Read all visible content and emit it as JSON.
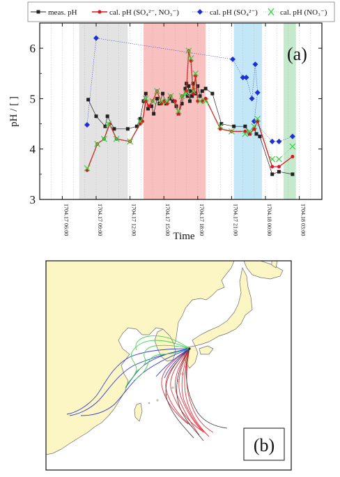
{
  "chart_data": [
    {
      "type": "line",
      "panel_label": "(a)",
      "xlabel": "Time",
      "ylabel": "pH / [ ]",
      "xlim": [
        "1704.17 04:00",
        "1704.18 05:00"
      ],
      "ylim": [
        3,
        6.5
      ],
      "y_ticks": [
        "3",
        "4",
        "5",
        "6"
      ],
      "x_ticks": [
        {
          "t": "1704.17 06:00",
          "h": 6
        },
        {
          "t": "1704.17 09:00",
          "h": 9
        },
        {
          "t": "1704.17 12:00",
          "h": 12
        },
        {
          "t": "1704.17 15:00",
          "h": 15
        },
        {
          "t": "1704.17 18:00",
          "h": 18
        },
        {
          "t": "1704.17 21:00",
          "h": 21
        },
        {
          "t": "1704.18 00:00",
          "h": 24
        },
        {
          "t": "1704.18 03:00",
          "h": 27
        }
      ],
      "shaded_periods": [
        {
          "start": 7.5,
          "end": 11.8,
          "color": "#e3e3e3"
        },
        {
          "start": 13.2,
          "end": 18.7,
          "color": "#f8c0bf"
        },
        {
          "start": 21.2,
          "end": 23.7,
          "color": "#c3e7f7"
        },
        {
          "start": 25.6,
          "end": 26.7,
          "color": "#c5e9cc"
        }
      ],
      "legend": [
        {
          "label": "meas. pH",
          "marker": "square",
          "color": "#222222"
        },
        {
          "label": "cal. pH (SO₄²⁻, NO₃⁻)",
          "marker": "circle",
          "color": "#e0141e"
        },
        {
          "label": "cal. pH (SO₄²⁻)",
          "marker": "diamond",
          "color": "#1e2fd6"
        },
        {
          "label": "cal. pH (NO₃⁻)",
          "marker": "cross",
          "color": "#3fd04a"
        }
      ],
      "series": [
        {
          "name": "meas. pH",
          "marker": "square",
          "color": "#222222",
          "points": [
            [
              8.3,
              4.98
            ],
            [
              9.0,
              4.65
            ],
            [
              9.8,
              4.45
            ],
            [
              10.0,
              4.65
            ],
            [
              10.6,
              4.4
            ],
            [
              11.8,
              4.4
            ],
            [
              12.6,
              4.45
            ],
            [
              12.9,
              4.6
            ],
            [
              13.2,
              4.95
            ],
            [
              13.4,
              5.1
            ],
            [
              13.6,
              4.8
            ],
            [
              13.9,
              4.85
            ],
            [
              14.1,
              4.7
            ],
            [
              14.4,
              5.0
            ],
            [
              14.6,
              4.9
            ],
            [
              14.9,
              5.1
            ],
            [
              15.2,
              4.9
            ],
            [
              15.5,
              5.0
            ],
            [
              15.8,
              4.95
            ],
            [
              16.1,
              4.85
            ],
            [
              16.3,
              4.7
            ],
            [
              16.6,
              4.9
            ],
            [
              16.9,
              5.2
            ],
            [
              17.0,
              5.3
            ],
            [
              17.1,
              5.05
            ],
            [
              17.2,
              5.25
            ],
            [
              17.3,
              4.95
            ],
            [
              17.4,
              5.15
            ],
            [
              17.5,
              5.05
            ],
            [
              17.6,
              5.3
            ],
            [
              17.8,
              5.1
            ],
            [
              18.0,
              5.25
            ],
            [
              18.2,
              5.05
            ],
            [
              18.4,
              5.15
            ],
            [
              18.7,
              5.2
            ],
            [
              19.3,
              5.1
            ],
            [
              20.1,
              4.5
            ],
            [
              21.2,
              4.45
            ],
            [
              22.2,
              4.45
            ],
            [
              22.6,
              4.3
            ],
            [
              23.0,
              4.4
            ],
            [
              23.2,
              4.3
            ],
            [
              23.5,
              4.25
            ],
            [
              24.6,
              3.5
            ],
            [
              25.2,
              3.55
            ],
            [
              26.4,
              3.5
            ]
          ]
        },
        {
          "name": "cal. pH (SO₄²⁻, NO₃⁻)",
          "marker": "circle",
          "color": "#e0141e",
          "points": [
            [
              8.2,
              3.58
            ],
            [
              9.1,
              4.1
            ],
            [
              9.7,
              4.2
            ],
            [
              10.2,
              4.5
            ],
            [
              10.8,
              4.2
            ],
            [
              12.0,
              4.15
            ],
            [
              12.9,
              4.5
            ],
            [
              13.1,
              4.55
            ],
            [
              13.4,
              4.95
            ],
            [
              13.7,
              4.85
            ],
            [
              14.0,
              4.95
            ],
            [
              14.4,
              5.15
            ],
            [
              14.8,
              4.9
            ],
            [
              15.0,
              4.95
            ],
            [
              15.3,
              4.9
            ],
            [
              15.6,
              5.05
            ],
            [
              16.0,
              4.95
            ],
            [
              16.3,
              4.7
            ],
            [
              16.6,
              5.05
            ],
            [
              17.0,
              5.15
            ],
            [
              17.2,
              5.95
            ],
            [
              17.4,
              5.75
            ],
            [
              17.6,
              5.1
            ],
            [
              17.8,
              5.45
            ],
            [
              18.0,
              4.95
            ],
            [
              18.4,
              4.95
            ],
            [
              18.7,
              5.0
            ],
            [
              20.0,
              4.4
            ],
            [
              21.0,
              4.35
            ],
            [
              22.2,
              4.35
            ],
            [
              22.6,
              4.3
            ],
            [
              23.0,
              4.4
            ],
            [
              23.3,
              4.55
            ],
            [
              24.6,
              3.65
            ],
            [
              25.2,
              3.65
            ],
            [
              26.4,
              3.85
            ]
          ]
        },
        {
          "name": "cal. pH (SO₄²⁻)",
          "marker": "diamond",
          "color": "#1e2fd6",
          "points": [
            [
              8.2,
              4.48
            ],
            [
              9.0,
              6.2
            ],
            [
              21.1,
              5.78
            ],
            [
              22.0,
              5.42
            ],
            [
              22.3,
              5.42
            ],
            [
              22.8,
              5.0
            ],
            [
              23.1,
              5.68
            ],
            [
              23.3,
              5.12
            ],
            [
              23.0,
              4.55
            ],
            [
              24.6,
              4.15
            ],
            [
              25.2,
              4.15
            ],
            [
              26.4,
              4.25
            ]
          ]
        },
        {
          "name": "cal. pH (NO₃⁻)",
          "marker": "cross",
          "color": "#3fd04a",
          "points": [
            [
              8.2,
              3.62
            ],
            [
              9.1,
              4.1
            ],
            [
              9.7,
              4.2
            ],
            [
              10.1,
              4.5
            ],
            [
              10.8,
              4.2
            ],
            [
              12.0,
              4.15
            ],
            [
              12.9,
              4.55
            ],
            [
              13.4,
              5.0
            ],
            [
              14.0,
              4.95
            ],
            [
              14.4,
              5.15
            ],
            [
              14.8,
              4.95
            ],
            [
              15.3,
              4.95
            ],
            [
              15.6,
              5.05
            ],
            [
              16.3,
              4.75
            ],
            [
              16.6,
              5.05
            ],
            [
              17.0,
              5.1
            ],
            [
              17.2,
              5.95
            ],
            [
              17.4,
              5.8
            ],
            [
              17.6,
              5.15
            ],
            [
              17.8,
              5.5
            ],
            [
              18.2,
              4.95
            ],
            [
              18.7,
              4.95
            ],
            [
              20.0,
              4.45
            ],
            [
              21.0,
              4.35
            ],
            [
              22.2,
              4.3
            ],
            [
              22.6,
              4.35
            ],
            [
              23.0,
              4.45
            ],
            [
              23.3,
              4.6
            ],
            [
              24.6,
              3.8
            ],
            [
              25.2,
              3.8
            ],
            [
              26.4,
              4.05
            ]
          ]
        }
      ]
    },
    {
      "type": "map",
      "panel_label": "(b)",
      "land_color": "#fcf6c4",
      "sea_color": "#ffffff",
      "trajectory_colors": {
        "red": "#e8323c",
        "black": "#3a3a3a",
        "blue": "#2e3cd8",
        "green": "#46d24c"
      }
    }
  ]
}
